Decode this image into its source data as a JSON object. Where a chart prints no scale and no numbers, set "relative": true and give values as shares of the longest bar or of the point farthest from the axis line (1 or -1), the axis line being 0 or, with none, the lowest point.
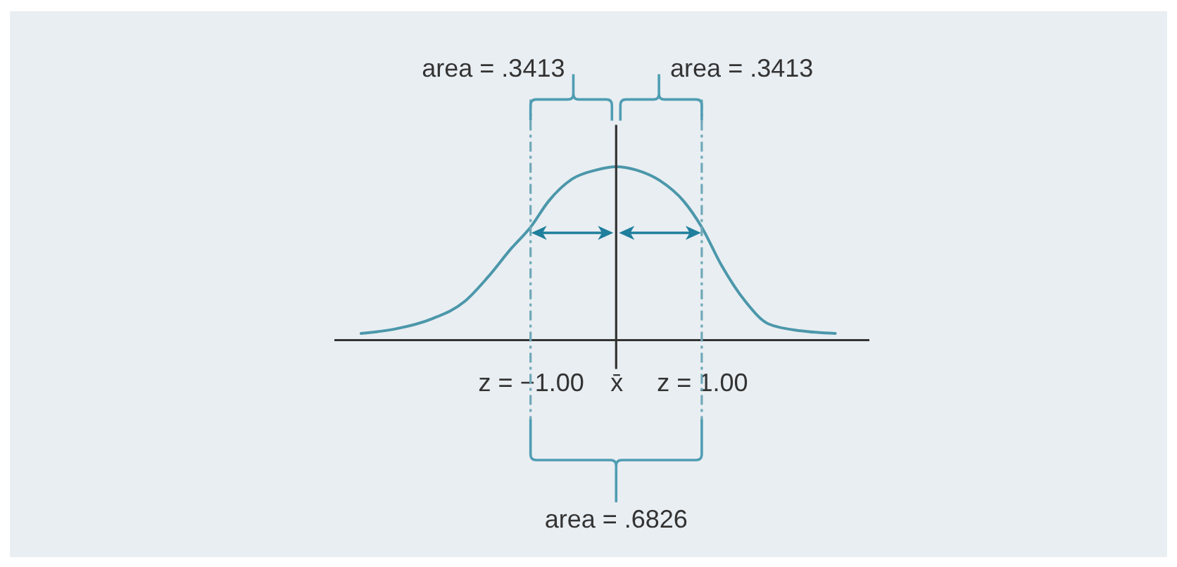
{
  "chart_data": {
    "type": "line",
    "relative": true,
    "x": [
      -2.98,
      -2.59,
      -2.15,
      -1.77,
      -1.5,
      -1.22,
      -1.0,
      -0.79,
      -0.51,
      -0.24,
      0,
      0.24,
      0.51,
      0.79,
      1.0,
      1.23,
      1.51,
      1.78,
      2.16,
      2.56
    ],
    "series": [
      {
        "color": "#4b97aa",
        "values": [
          0.035,
          0.06,
          0.12,
          0.22,
          0.36,
          0.53,
          0.65,
          0.8,
          0.93,
          0.98,
          1,
          0.98,
          0.92,
          0.8,
          0.65,
          0.43,
          0.22,
          0.09,
          0.05,
          0.035
        ]
      }
    ],
    "xlim": [
      -3.3,
      2.95
    ],
    "xticks": [
      {
        "value": -1,
        "label": "z = −1.00"
      },
      {
        "value": 0,
        "label": "x̄"
      },
      {
        "value": 1,
        "label": "z = 1.00"
      }
    ],
    "ref_lines": [
      {
        "axis": "x",
        "value": -1,
        "color": "#6fa8b8",
        "line_style": "dashed"
      },
      {
        "axis": "x",
        "value": 0,
        "color": "#333333",
        "line_style": "solid"
      },
      {
        "axis": "x",
        "value": 1,
        "color": "#6fa8b8",
        "line_style": "dashed"
      }
    ],
    "annotations": [
      "area = .3413",
      "area = .3413",
      "area = .6826"
    ]
  }
}
